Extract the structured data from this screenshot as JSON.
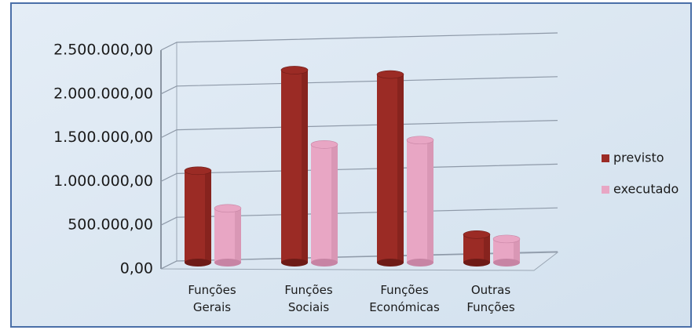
{
  "chart_data": {
    "type": "bar3d",
    "categories": [
      "Funções Gerais",
      "Funções Sociais",
      "Funções Económicas",
      "Outras Funções"
    ],
    "series": [
      {
        "name": "previsto",
        "color": "#9b2b25",
        "values": [
          1050000,
          2200000,
          2150000,
          320000
        ]
      },
      {
        "name": "executado",
        "color": "#e8a6c4",
        "values": [
          620000,
          1350000,
          1400000,
          270000
        ]
      }
    ],
    "ylim": [
      0,
      2500000
    ],
    "yticks": [
      {
        "value": 0,
        "label": "0,00"
      },
      {
        "value": 500000,
        "label": "500.000,00"
      },
      {
        "value": 1000000,
        "label": "1.000.000,00"
      },
      {
        "value": 1500000,
        "label": "1.500.000,00"
      },
      {
        "value": 2000000,
        "label": "2.000.000,00"
      },
      {
        "value": 2500000,
        "label": "2.500.000,00"
      }
    ],
    "grid": true,
    "legend": "right"
  }
}
